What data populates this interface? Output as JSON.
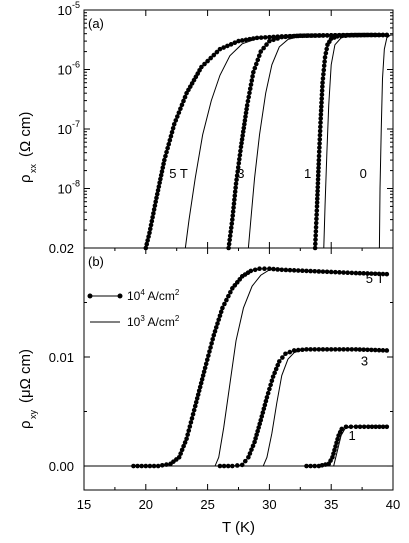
{
  "chart_data": [
    {
      "panel": "(a)",
      "type": "line",
      "yscale": "log",
      "xlim": [
        15,
        40
      ],
      "ylim": [
        1e-09,
        1e-05
      ],
      "ylabel_main": "ρ",
      "ylabel_sub": "xx",
      "ylabel_unit": "(Ω cm)",
      "yticks": [
        {
          "value": 1e-05,
          "exp": "-5"
        },
        {
          "value": 1e-06,
          "exp": "-6"
        },
        {
          "value": 1e-07,
          "exp": "-7"
        },
        {
          "value": 1e-08,
          "exp": "-8"
        }
      ],
      "y_bottom_label": "0.02",
      "series": [
        {
          "style": "dots",
          "field": "5 T",
          "x": [
            20.0,
            20.3,
            20.8,
            21.5,
            22.3,
            23.3,
            24.5,
            26.0,
            27.5,
            29.0,
            31.0,
            33.0,
            35.0,
            37.0,
            39.5
          ],
          "y": [
            1e-09,
            1.8e-09,
            6e-09,
            3e-08,
            1.2e-07,
            4e-07,
            1.1e-06,
            2.2e-06,
            3e-06,
            3.4e-06,
            3.6e-06,
            3.7e-06,
            3.75e-06,
            3.8e-06,
            3.8e-06
          ]
        },
        {
          "style": "line",
          "field": "5 T",
          "x": [
            23.2,
            23.5,
            24.0,
            24.6,
            25.3,
            26.0,
            26.8,
            27.8,
            29.0,
            31.0,
            34.0,
            37.0,
            39.5
          ],
          "y": [
            1e-09,
            3e-09,
            1.5e-08,
            8e-08,
            3e-07,
            8e-07,
            1.7e-06,
            2.7e-06,
            3.3e-06,
            3.6e-06,
            3.75e-06,
            3.8e-06,
            3.8e-06
          ]
        },
        {
          "style": "dots",
          "field": "3",
          "x": [
            26.7,
            27.0,
            27.3,
            27.7,
            28.2,
            28.7,
            29.3,
            30.0,
            31.0,
            32.5,
            35.0,
            37.5,
            39.5
          ],
          "y": [
            1e-09,
            3e-09,
            1.2e-08,
            5e-08,
            2.5e-07,
            9e-07,
            2e-06,
            3e-06,
            3.5e-06,
            3.7e-06,
            3.75e-06,
            3.8e-06,
            3.8e-06
          ]
        },
        {
          "style": "line",
          "field": "3",
          "x": [
            28.3,
            28.5,
            28.8,
            29.2,
            29.7,
            30.2,
            30.8,
            31.5,
            32.5,
            34.0,
            36.5,
            39.5
          ],
          "y": [
            1e-09,
            3e-09,
            1.5e-08,
            8e-08,
            4e-07,
            1.2e-06,
            2.4e-06,
            3.2e-06,
            3.6e-06,
            3.75e-06,
            3.8e-06,
            3.8e-06
          ]
        },
        {
          "style": "dots",
          "field": "1",
          "x": [
            33.7,
            33.85,
            34.0,
            34.15,
            34.3,
            34.5,
            34.7,
            35.0,
            35.5,
            36.5,
            38.0,
            39.5
          ],
          "y": [
            1e-09,
            5e-09,
            3e-08,
            1.5e-07,
            6e-07,
            1.6e-06,
            2.6e-06,
            3.3e-06,
            3.6e-06,
            3.75e-06,
            3.8e-06,
            3.8e-06
          ]
        },
        {
          "style": "line",
          "field": "1",
          "x": [
            34.4,
            34.5,
            34.65,
            34.8,
            35.0,
            35.3,
            35.8,
            36.5,
            38.0,
            39.5
          ],
          "y": [
            1e-09,
            5e-09,
            4e-08,
            2.5e-07,
            1.2e-06,
            2.6e-06,
            3.4e-06,
            3.7e-06,
            3.8e-06,
            3.8e-06
          ]
        },
        {
          "style": "line",
          "field": "0",
          "x": [
            38.9,
            38.95,
            39.05,
            39.15,
            39.3,
            39.5,
            39.8,
            40.0
          ],
          "y": [
            1e-09,
            1e-08,
            1e-07,
            7e-07,
            2.2e-06,
            3.4e-06,
            3.8e-06,
            3.8e-06
          ]
        }
      ],
      "labels": [
        {
          "text": "5 T",
          "x": 21.9,
          "y": 1.5e-08
        },
        {
          "text": "3",
          "x": 27.4,
          "y": 1.5e-08
        },
        {
          "text": "1",
          "x": 32.8,
          "y": 1.5e-08
        },
        {
          "text": "0",
          "x": 37.3,
          "y": 1.5e-08
        }
      ]
    },
    {
      "panel": "(b)",
      "type": "line",
      "xlim": [
        15,
        40
      ],
      "ylim": [
        -0.0022,
        0.02
      ],
      "xlabel": "T (K)",
      "ylabel_main": "ρ",
      "ylabel_sub": "xy",
      "ylabel_unit": "(μΩ cm)",
      "yticks": [
        "0.00",
        "0.01"
      ],
      "ytick_values": [
        0.0,
        0.01
      ],
      "xticks": [
        "15",
        "20",
        "25",
        "30",
        "35",
        "40"
      ],
      "xtick_values": [
        15,
        20,
        25,
        30,
        35,
        40
      ],
      "legend": [
        {
          "style": "dots",
          "label_main": "10",
          "label_exp": "4",
          "label_tail": " A/cm",
          "label_tail_exp": "2"
        },
        {
          "style": "line",
          "label_main": "10",
          "label_exp": "3",
          "label_tail": " A/cm",
          "label_tail_exp": "2"
        }
      ],
      "series": [
        {
          "style": "dots",
          "field": "5 T",
          "x": [
            19.0,
            20.0,
            21.0,
            22.0,
            22.7,
            23.3,
            24.0,
            24.8,
            25.5,
            26.2,
            27.0,
            27.8,
            28.5,
            29.2,
            30.0,
            31.0,
            33.0,
            35.0,
            37.0,
            39.5
          ],
          "y": [
            0.0,
            0.0,
            0.0,
            0.0002,
            0.0008,
            0.0025,
            0.0055,
            0.009,
            0.012,
            0.0145,
            0.0163,
            0.0174,
            0.0179,
            0.0181,
            0.0181,
            0.018,
            0.0179,
            0.0178,
            0.0177,
            0.0176
          ]
        },
        {
          "style": "line",
          "field": "5 T",
          "x": [
            15.0,
            25.6,
            25.9,
            26.3,
            26.8,
            27.3,
            27.9,
            28.6,
            29.3,
            30.0,
            31.0
          ],
          "y": [
            0.0,
            0.0,
            0.0008,
            0.0035,
            0.0075,
            0.0115,
            0.0145,
            0.0165,
            0.0175,
            0.018,
            0.0181
          ]
        },
        {
          "style": "dots",
          "field": "3",
          "x": [
            26.0,
            27.0,
            27.8,
            28.3,
            28.8,
            29.3,
            29.8,
            30.3,
            30.8,
            31.3,
            32.0,
            33.0,
            35.0,
            37.0,
            39.5
          ],
          "y": [
            0.0,
            0.0,
            0.0001,
            0.0008,
            0.0022,
            0.0042,
            0.0063,
            0.0082,
            0.0096,
            0.0103,
            0.0106,
            0.0107,
            0.0107,
            0.0107,
            0.0106
          ]
        },
        {
          "style": "line",
          "field": "3",
          "x": [
            25.8,
            29.5,
            29.8,
            30.2,
            30.6,
            31.0,
            31.5,
            32.0,
            32.5,
            33.5
          ],
          "y": [
            0.0,
            0.0,
            0.0008,
            0.003,
            0.0058,
            0.0083,
            0.0098,
            0.0104,
            0.0106,
            0.0107
          ]
        },
        {
          "style": "dots",
          "field": "1",
          "x": [
            33.0,
            34.0,
            34.8,
            35.1,
            35.35,
            35.6,
            35.85,
            36.2,
            37.0,
            38.0,
            39.5
          ],
          "y": [
            0.0,
            0.0,
            0.0002,
            0.0008,
            0.0018,
            0.0028,
            0.0034,
            0.0036,
            0.0036,
            0.0036,
            0.0036
          ]
        },
        {
          "style": "line",
          "field": "1",
          "x": [
            33.0,
            35.2,
            35.5,
            35.8,
            36.1,
            36.6,
            37.5,
            39.5
          ],
          "y": [
            0.0,
            0.0,
            0.0014,
            0.0028,
            0.0034,
            0.0036,
            0.0036,
            0.0036
          ]
        }
      ],
      "labels": [
        {
          "text": "5 T",
          "x": 37.8,
          "y": 0.0168
        },
        {
          "text": "3",
          "x": 37.4,
          "y": 0.0092
        },
        {
          "text": "1",
          "x": 36.4,
          "y": 0.0024
        }
      ]
    }
  ]
}
